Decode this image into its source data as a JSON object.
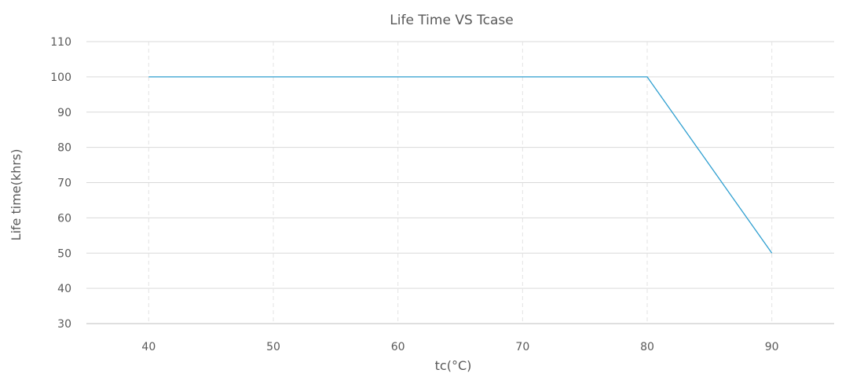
{
  "chart_data": {
    "type": "line",
    "title": "Life Time VS Tcase",
    "xlabel": "tc(°C)",
    "ylabel": "Life time(khrs)",
    "xlim": [
      35,
      95
    ],
    "ylim": [
      30,
      110
    ],
    "x_ticks": [
      "40",
      "50",
      "60",
      "70",
      "80",
      "90"
    ],
    "y_ticks": [
      "30",
      "40",
      "50",
      "60",
      "70",
      "80",
      "90",
      "100",
      "110"
    ],
    "grid": {
      "horizontal": true,
      "vertical_dashed": true
    },
    "series": [
      {
        "x": [
          40,
          80,
          90
        ],
        "y": [
          100,
          100,
          50
        ],
        "color": "#2f9fd0"
      }
    ]
  }
}
